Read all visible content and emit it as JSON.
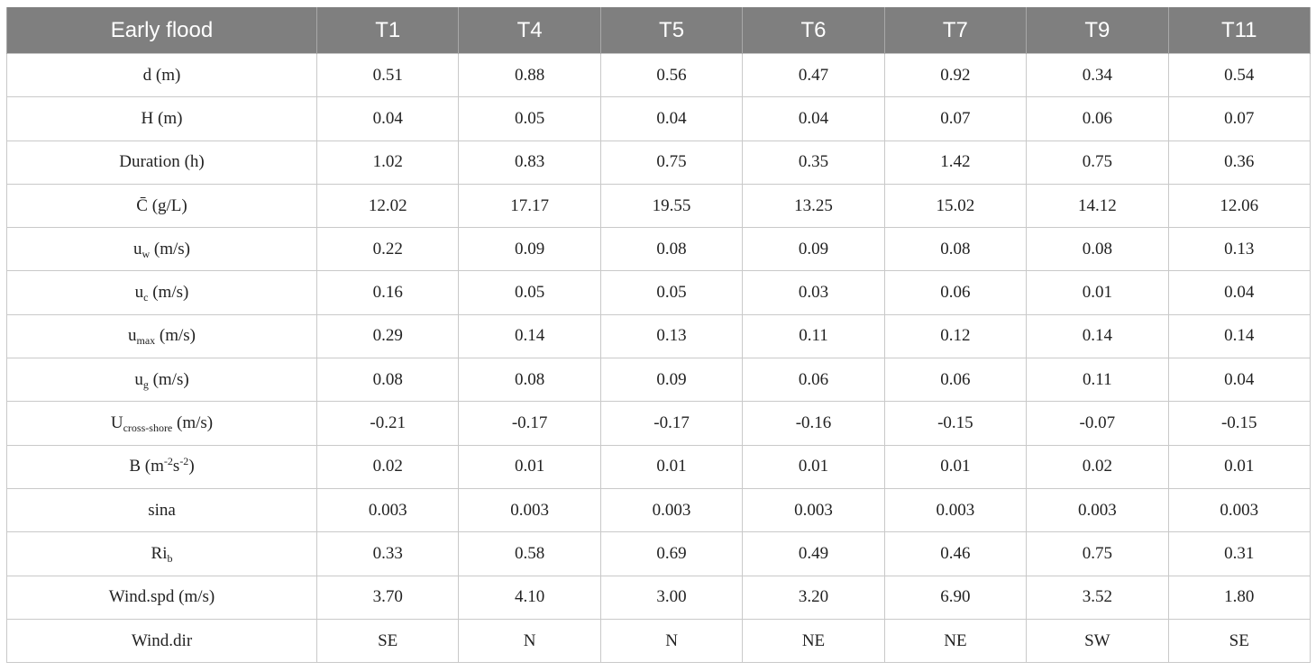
{
  "header": [
    "Early flood",
    "T1",
    "T4",
    "T5",
    "T6",
    "T7",
    "T9",
    "T11"
  ],
  "rows": [
    {
      "label": {
        "main": "d",
        "sub": "",
        "sup1": "",
        "mid": "",
        "sup2": "",
        "unit": "(m)"
      },
      "values": [
        "0.51",
        "0.88",
        "0.56",
        "0.47",
        "0.92",
        "0.34",
        "0.54"
      ]
    },
    {
      "label": {
        "main": "H",
        "sub": "",
        "sup1": "",
        "mid": "",
        "sup2": "",
        "unit": "(m)"
      },
      "values": [
        "0.04",
        "0.05",
        "0.04",
        "0.04",
        "0.07",
        "0.06",
        "0.07"
      ]
    },
    {
      "label": {
        "main": "Duration",
        "sub": "",
        "sup1": "",
        "mid": "",
        "sup2": "",
        "unit": "(h)"
      },
      "values": [
        "1.02",
        "0.83",
        "0.75",
        "0.35",
        "1.42",
        "0.75",
        "0.36"
      ]
    },
    {
      "label": {
        "main": "C̄",
        "sub": "",
        "sup1": "",
        "mid": "",
        "sup2": "",
        "unit": "(g/L)"
      },
      "values": [
        "12.02",
        "17.17",
        "19.55",
        "13.25",
        "15.02",
        "14.12",
        "12.06"
      ]
    },
    {
      "label": {
        "main": "u",
        "sub": "w",
        "sup1": "",
        "mid": "",
        "sup2": "",
        "unit": "(m/s)"
      },
      "values": [
        "0.22",
        "0.09",
        "0.08",
        "0.09",
        "0.08",
        "0.08",
        "0.13"
      ]
    },
    {
      "label": {
        "main": "u",
        "sub": "c",
        "sup1": "",
        "mid": "",
        "sup2": "",
        "unit": "(m/s)"
      },
      "values": [
        "0.16",
        "0.05",
        "0.05",
        "0.03",
        "0.06",
        "0.01",
        "0.04"
      ]
    },
    {
      "label": {
        "main": "u",
        "sub": "max",
        "sup1": "",
        "mid": "",
        "sup2": "",
        "unit": "(m/s)"
      },
      "values": [
        "0.29",
        "0.14",
        "0.13",
        "0.11",
        "0.12",
        "0.14",
        "0.14"
      ]
    },
    {
      "label": {
        "main": "u",
        "sub": "g",
        "sup1": "",
        "mid": "",
        "sup2": "",
        "unit": "(m/s)"
      },
      "values": [
        "0.08",
        "0.08",
        "0.09",
        "0.06",
        "0.06",
        "0.11",
        "0.04"
      ]
    },
    {
      "label": {
        "main": "U",
        "sub": "cross-shore",
        "sup1": "",
        "mid": "",
        "sup2": "",
        "unit": "(m/s)"
      },
      "values": [
        "-0.21",
        "-0.17",
        "-0.17",
        "-0.16",
        "-0.15",
        "-0.07",
        "-0.15"
      ]
    },
    {
      "label": {
        "main": "B",
        "sub": "",
        "sup1": "",
        "mid": "",
        "sup2": "",
        "unit": "(m",
        "unitsup1": "-2",
        "unitmid": "s",
        "unitsup2": "-2",
        "unitend": ")"
      },
      "values": [
        "0.02",
        "0.01",
        "0.01",
        "0.01",
        "0.01",
        "0.02",
        "0.01"
      ]
    },
    {
      "label": {
        "main": "sina",
        "sub": "",
        "sup1": "",
        "mid": "",
        "sup2": "",
        "unit": ""
      },
      "values": [
        "0.003",
        "0.003",
        "0.003",
        "0.003",
        "0.003",
        "0.003",
        "0.003"
      ]
    },
    {
      "label": {
        "main": "Ri",
        "sub": "b",
        "sup1": "",
        "mid": "",
        "sup2": "",
        "unit": ""
      },
      "values": [
        "0.33",
        "0.58",
        "0.69",
        "0.49",
        "0.46",
        "0.75",
        "0.31"
      ]
    },
    {
      "label": {
        "main": "Wind.spd",
        "sub": "",
        "sup1": "",
        "mid": "",
        "sup2": "",
        "unit": "(m/s)"
      },
      "values": [
        "3.70",
        "4.10",
        "3.00",
        "3.20",
        "6.90",
        "3.52",
        "1.80"
      ]
    },
    {
      "label": {
        "main": "Wind.dir",
        "sub": "",
        "sup1": "",
        "mid": "",
        "sup2": "",
        "unit": ""
      },
      "values": [
        "SE",
        "N",
        "N",
        "NE",
        "NE",
        "SW",
        "SE"
      ]
    }
  ]
}
